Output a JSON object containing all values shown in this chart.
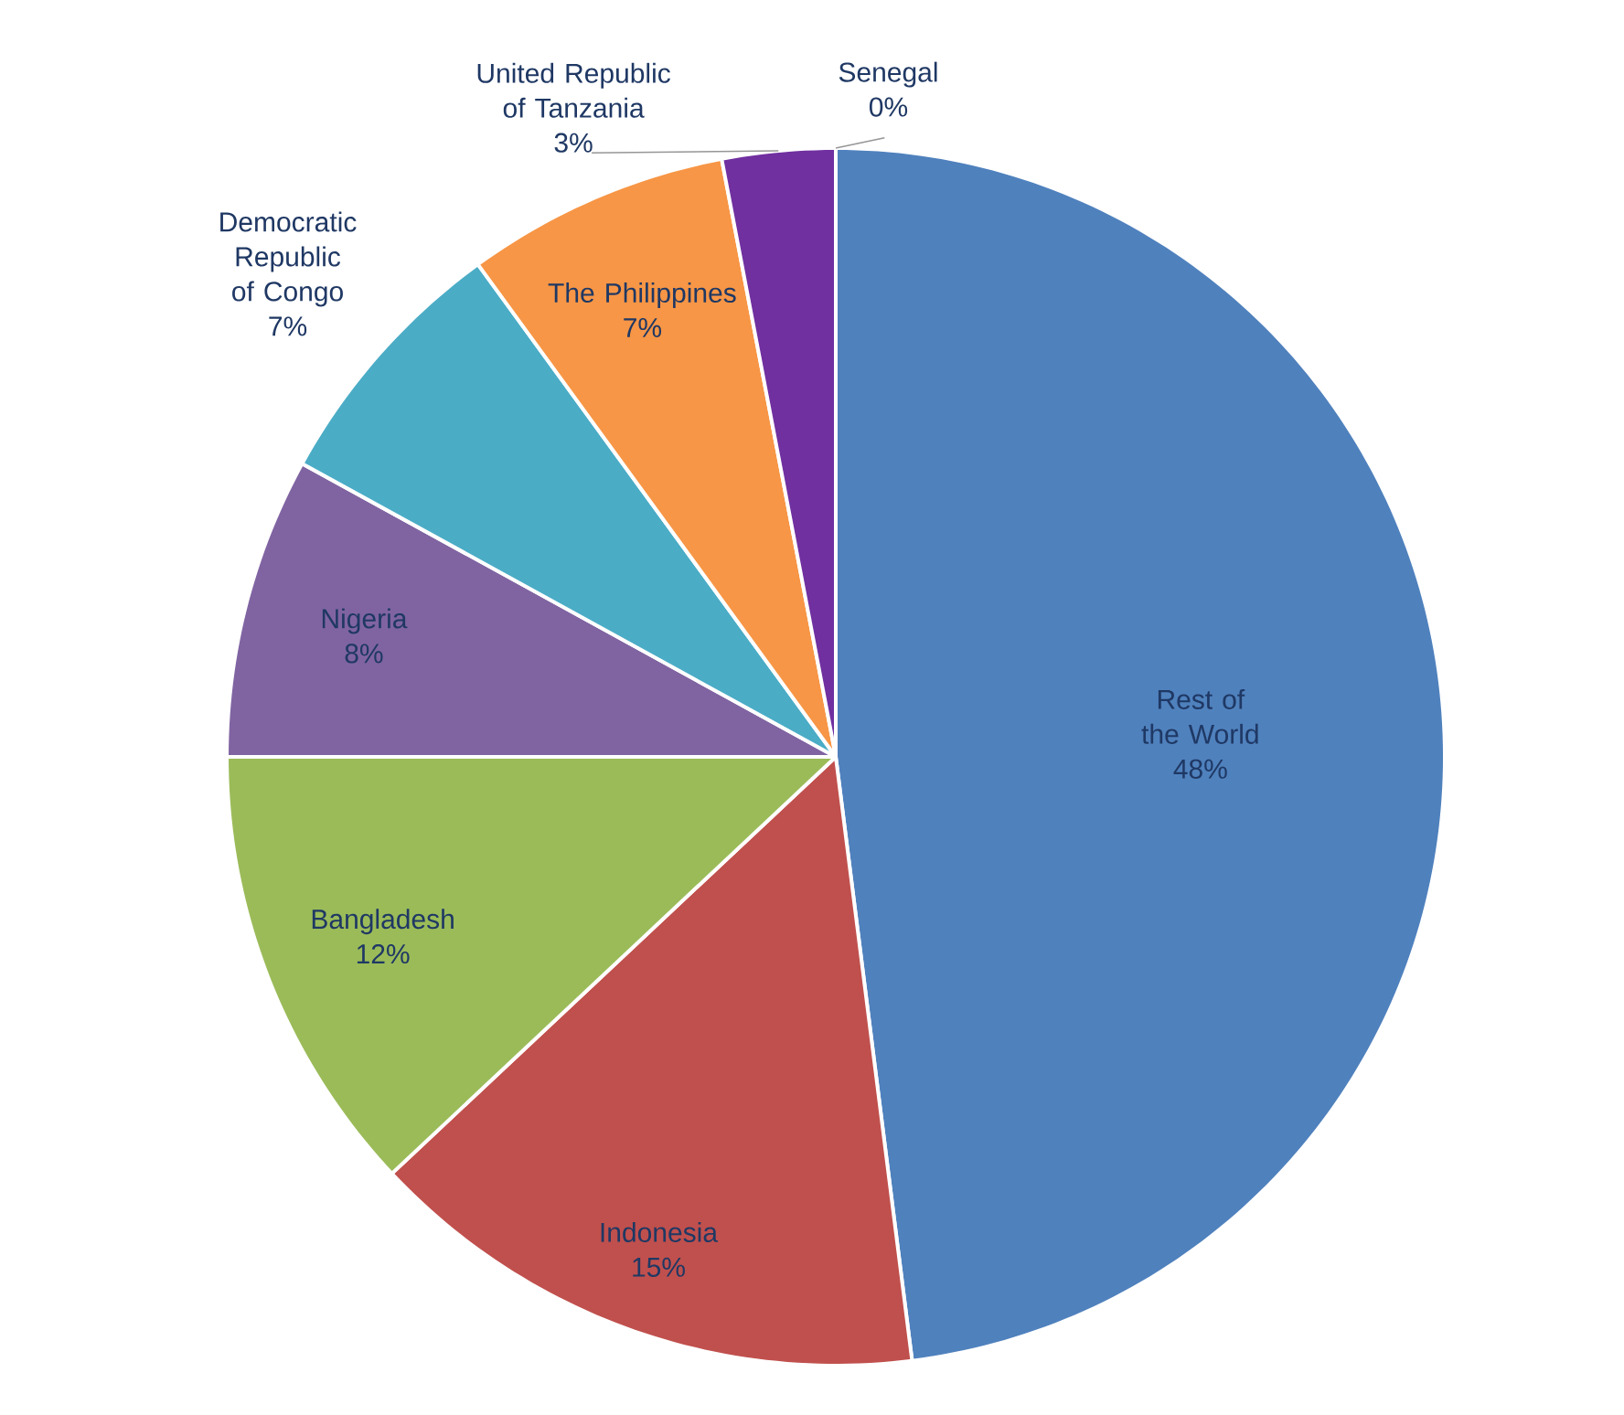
{
  "chart_data": {
    "type": "pie",
    "categories": [
      "Rest of the World",
      "Indonesia",
      "Bangladesh",
      "Nigeria",
      "Democratic Republic of Congo",
      "The Philippines",
      "United Republic of Tanzania",
      "Senegal"
    ],
    "values": [
      48,
      15,
      12,
      8,
      7,
      7,
      3,
      0
    ],
    "value_labels": [
      "48%",
      "15%",
      "12%",
      "8%",
      "7%",
      "7%",
      "3%",
      "0%"
    ],
    "colors": [
      "#4f81bd",
      "#c0504d",
      "#9bbb59",
      "#8064a2",
      "#4bacc6",
      "#f79646",
      "#7030a0",
      "#bfbfbf"
    ]
  }
}
